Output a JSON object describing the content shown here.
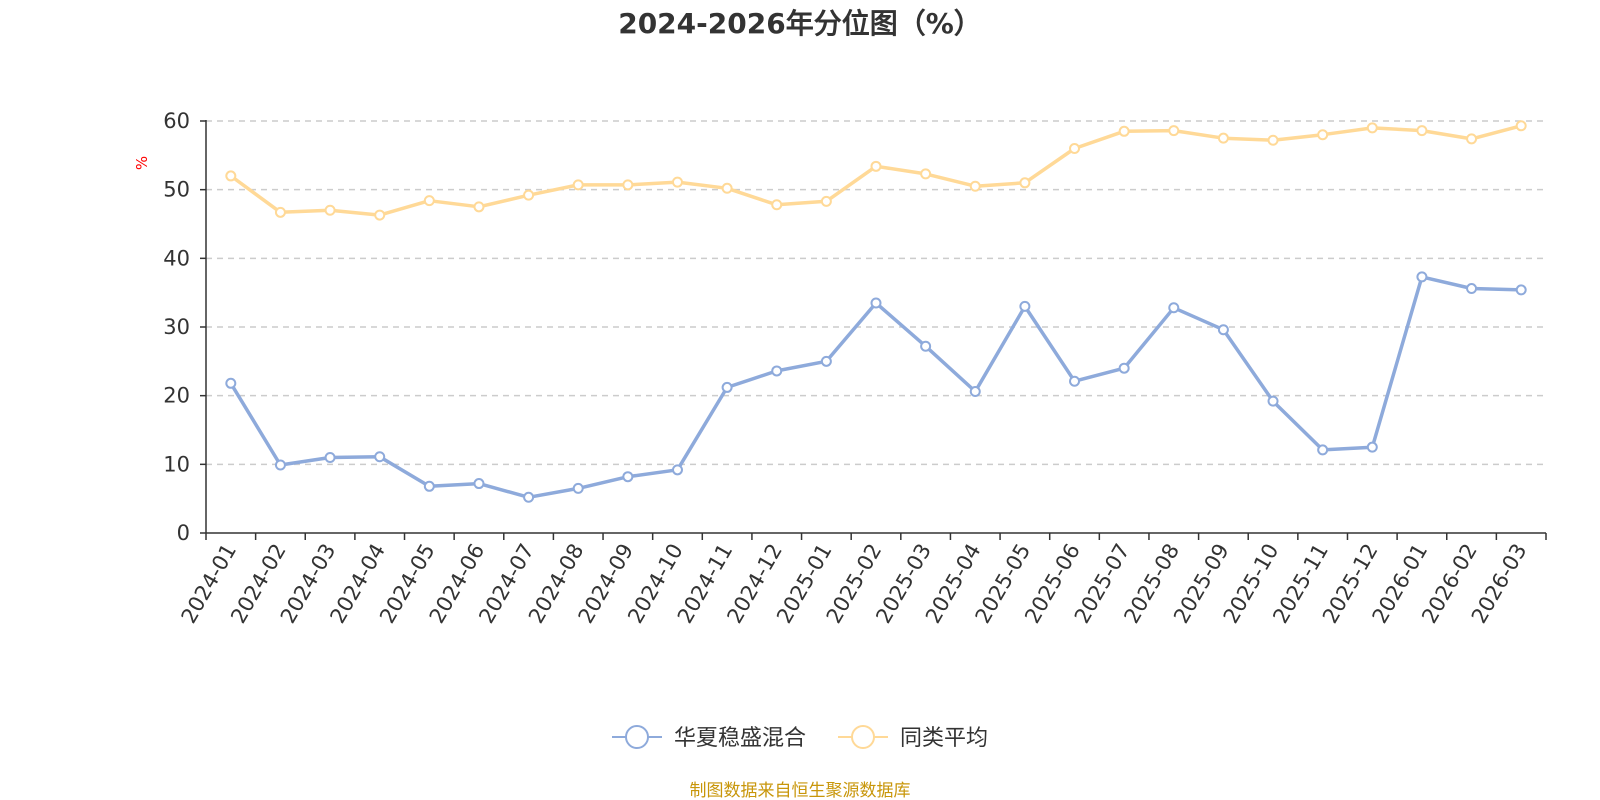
{
  "chart_data": {
    "type": "line",
    "title": "2024-2026年分位图（%）",
    "ylabel": "%",
    "xlabel": "",
    "ylim": [
      0,
      60
    ],
    "yticks": [
      0,
      10,
      20,
      30,
      40,
      50,
      60
    ],
    "grid": true,
    "legend_position": "bottom-center",
    "categories": [
      "2024-01",
      "2024-02",
      "2024-03",
      "2024-04",
      "2024-05",
      "2024-06",
      "2024-07",
      "2024-08",
      "2024-09",
      "2024-10",
      "2024-11",
      "2024-12",
      "2025-01",
      "2025-02",
      "2025-03",
      "2025-04",
      "2025-05",
      "2025-06",
      "2025-07",
      "2025-08",
      "2025-09",
      "2025-10",
      "2025-11",
      "2025-12",
      "2026-01",
      "2026-02",
      "2026-03"
    ],
    "series": [
      {
        "name": "华夏稳盛混合",
        "color": "#8eaadb",
        "values": [
          21.8,
          9.9,
          11.0,
          11.1,
          6.8,
          7.2,
          5.2,
          6.5,
          8.2,
          9.2,
          21.2,
          23.6,
          25.0,
          33.5,
          27.2,
          20.6,
          33.0,
          22.1,
          24.0,
          32.8,
          29.6,
          19.2,
          12.1,
          12.5,
          37.3,
          35.6,
          35.4
        ]
      },
      {
        "name": "同类平均",
        "color": "#ffd997",
        "values": [
          52.0,
          46.7,
          47.0,
          46.3,
          48.4,
          47.5,
          49.2,
          50.7,
          50.7,
          51.1,
          50.2,
          47.8,
          48.3,
          53.4,
          52.3,
          50.5,
          51.0,
          56.0,
          58.5,
          58.6,
          57.5,
          57.2,
          58.0,
          59.0,
          58.6,
          57.4,
          59.3
        ]
      }
    ],
    "source": "制图数据来自恒生聚源数据库",
    "source_color": "#c8960a"
  }
}
